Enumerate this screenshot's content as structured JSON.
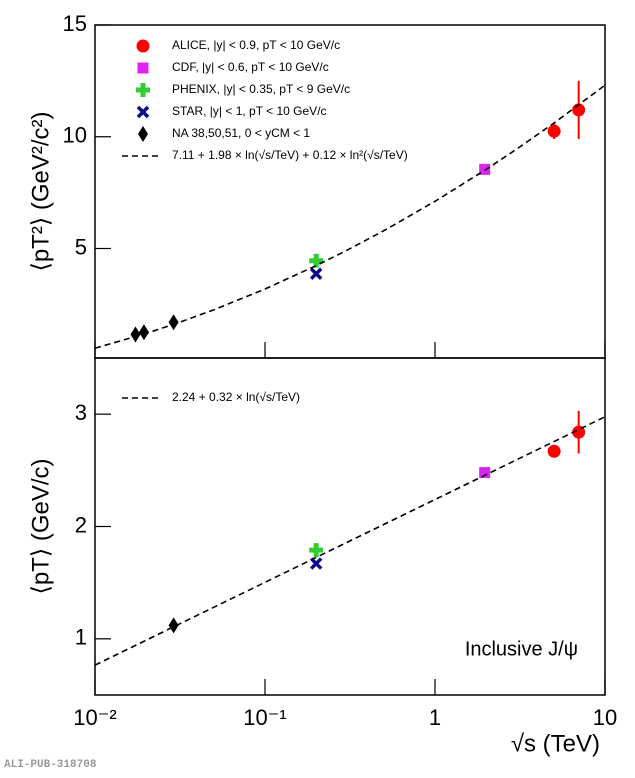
{
  "footer": "ALI-PUB-318708",
  "chart_data": [
    {
      "type": "scatter",
      "ylabel": "⟨pT²⟩ (GeV²/c²)",
      "xscale": "log",
      "xlim": [
        0.01,
        10
      ],
      "ylim": [
        0.1,
        15
      ],
      "yticks": [
        5,
        10,
        15
      ],
      "xticks": [
        0.01,
        0.1,
        1,
        10
      ],
      "show_xtick_labels": false,
      "series": [
        {
          "name": "ALICE, |y| < 0.9, pT < 10 GeV/c",
          "color": "#ff0000",
          "marker": "circle",
          "x": [
            5.02,
            7
          ],
          "values": [
            10.25,
            11.2
          ],
          "errors": [
            0.35,
            1.3
          ]
        },
        {
          "name": "CDF, |y| < 0.6, pT < 10 GeV/c",
          "color": "#dd22ee",
          "marker": "square",
          "x": [
            1.96
          ],
          "values": [
            8.54
          ]
        },
        {
          "name": "PHENIX, |y| < 0.35, pT < 9 GeV/c",
          "color": "#33cc33",
          "marker": "plus",
          "x": [
            0.2
          ],
          "values": [
            4.45
          ]
        },
        {
          "name": "STAR, |y| < 1, pT < 10 GeV/c",
          "color": "#0c0c88",
          "marker": "cross",
          "x": [
            0.2
          ],
          "values": [
            3.87
          ]
        },
        {
          "name": "NA 38,50,51, 0 < yCM < 1",
          "color": "#000000",
          "marker": "diamond",
          "x": [
            0.0173,
            0.0194,
            0.029
          ],
          "values": [
            1.15,
            1.25,
            1.7
          ]
        },
        {
          "name": "7.11 + 1.98 × ln(√s/TeV) + 0.12 × ln²(√s/TeV)",
          "color": "#000000",
          "marker": "line",
          "line_style": "dashed",
          "x": [
            0.01,
            0.02,
            0.03,
            0.05,
            0.1,
            0.2,
            0.3,
            0.5,
            1,
            2,
            3,
            5,
            10
          ],
          "values": [
            0.537,
            1.2,
            1.643,
            2.255,
            3.187,
            4.234,
            4.9,
            5.796,
            7.11,
            8.54,
            9.43,
            10.608,
            12.305
          ]
        }
      ]
    },
    {
      "type": "scatter",
      "ylabel": "⟨pT⟩ (GeV/c)",
      "xlabel": "√s (TeV)",
      "xscale": "log",
      "annotation": "Inclusive J/ψ",
      "xlim": [
        0.01,
        10
      ],
      "ylim": [
        0.5,
        3.5
      ],
      "yticks": [
        1,
        2,
        3
      ],
      "xticks": [
        {
          "value": 0.01,
          "label": "10⁻²"
        },
        {
          "value": 0.1,
          "label": "10⁻¹"
        },
        1,
        10
      ],
      "show_xtick_labels": true,
      "series": [
        {
          "color": "#ff0000",
          "marker": "circle",
          "x": [
            5.02,
            7
          ],
          "values": [
            2.67,
            2.84
          ],
          "errors": [
            0.03,
            0.19
          ]
        },
        {
          "color": "#dd22ee",
          "marker": "square",
          "x": [
            1.96
          ],
          "values": [
            2.48
          ]
        },
        {
          "color": "#33cc33",
          "marker": "plus",
          "x": [
            0.2
          ],
          "values": [
            1.79
          ]
        },
        {
          "color": "#0c0c88",
          "marker": "cross",
          "x": [
            0.2
          ],
          "values": [
            1.67
          ]
        },
        {
          "color": "#000000",
          "marker": "diamond",
          "x": [
            0.029
          ],
          "values": [
            1.12
          ]
        },
        {
          "name": "2.24 + 0.32 × ln(√s/TeV)",
          "color": "#000000",
          "marker": "line",
          "line_style": "dashed",
          "x": [
            0.01,
            0.1,
            1,
            10
          ],
          "values": [
            0.766,
            1.503,
            2.24,
            2.977
          ]
        }
      ]
    }
  ]
}
